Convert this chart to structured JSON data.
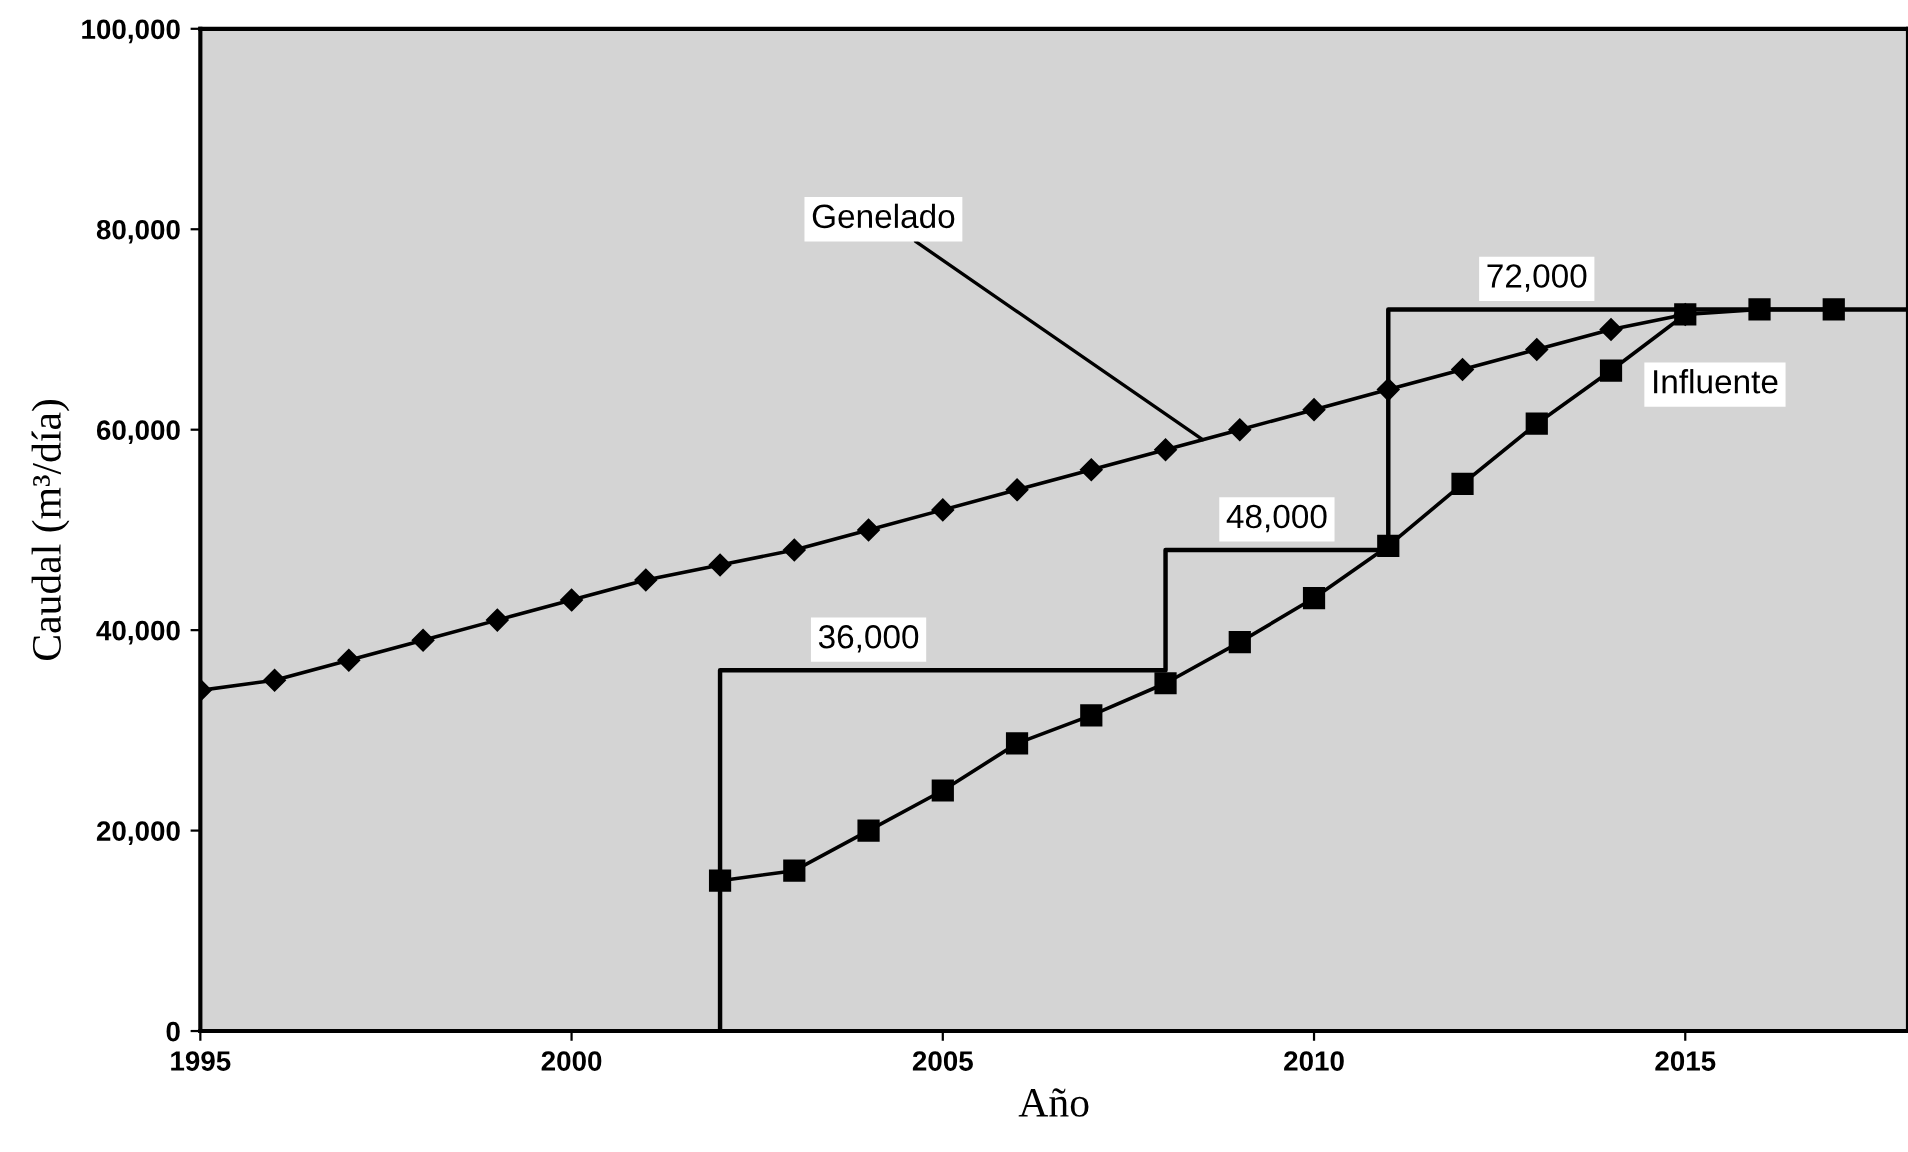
{
  "chart_data": {
    "type": "line",
    "xlabel": "Año",
    "ylabel": "Caudal (m³/día)",
    "xlim": [
      1995,
      2018
    ],
    "ylim": [
      0,
      100000
    ],
    "xticks": [
      1995,
      2000,
      2005,
      2010,
      2015
    ],
    "yticks": [
      0,
      {
        "value": 20000,
        "label": "20,000"
      },
      {
        "value": 40000,
        "label": "40,000"
      },
      {
        "value": 60000,
        "label": "60,000"
      },
      {
        "value": 80000,
        "label": "80,000"
      },
      {
        "value": 100000,
        "label": "100,000"
      }
    ],
    "grid": false,
    "legend": false,
    "series": [
      {
        "name": "Genelado",
        "color": "#000000",
        "marker": "diamond",
        "x": [
          1995,
          1996,
          1997,
          1998,
          1999,
          2000,
          2001,
          2002,
          2003,
          2004,
          2005,
          2006,
          2007,
          2008,
          2009,
          2010,
          2011,
          2012,
          2013,
          2014,
          2015
        ],
        "values": [
          34000,
          35000,
          37000,
          39000,
          41000,
          43000,
          45000,
          46500,
          48000,
          50000,
          52000,
          54000,
          56000,
          58000,
          60000,
          62000,
          64000,
          66000,
          68000,
          70000,
          71500
        ]
      },
      {
        "name": "Influente",
        "color": "#000000",
        "marker": "square",
        "x": [
          2002,
          2003,
          2004,
          2005,
          2006,
          2007,
          2008,
          2009,
          2010,
          2011,
          2012,
          2013,
          2014,
          2015,
          2016,
          2017
        ],
        "values": [
          15000,
          16000,
          20000,
          24000,
          28700,
          31500,
          34700,
          38800,
          43200,
          48400,
          54600,
          60600,
          65900,
          71500,
          72000,
          72000
        ]
      },
      {
        "type": "step",
        "color": "#000000",
        "marker": "none",
        "x": [
          2002,
          2002,
          2008,
          2011,
          2018
        ],
        "values": [
          0,
          36000,
          48000,
          72000,
          72000
        ]
      }
    ],
    "annotations": [
      {
        "text": "36,000",
        "x": 2004,
        "y": 36000
      },
      {
        "text": "48,000",
        "x": 2009.5,
        "y": 48000
      },
      {
        "text": "72,000",
        "x": 2013,
        "y": 72000
      }
    ]
  }
}
